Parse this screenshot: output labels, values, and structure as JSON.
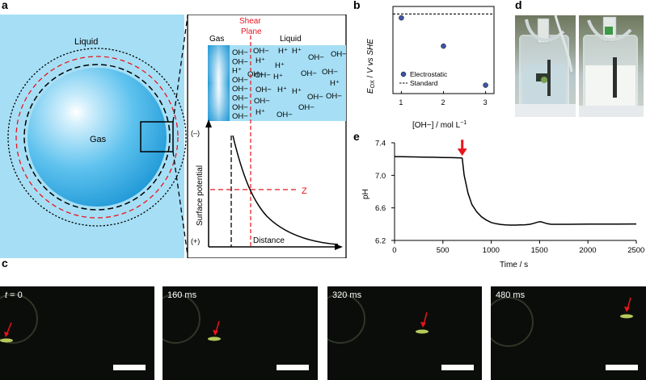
{
  "panel_labels": {
    "a": "a",
    "b": "b",
    "c": "c",
    "d": "d",
    "e": "e"
  },
  "panel_a": {
    "liquid_label": "Liquid",
    "gas_label": "Gas",
    "zoom": {
      "gas_label": "Gas",
      "shear_plane_line1": "Shear",
      "shear_plane_line2": "Plane",
      "liquid_label": "Liquid",
      "surface_ions": [
        "OH−",
        "OH−",
        "H⁺",
        "OH−",
        "OH−",
        "OH−",
        "OH−",
        "OH−"
      ],
      "solution_ions": [
        "OH−",
        "H⁺",
        "H⁺",
        "OH−",
        "OH−",
        "H⁺",
        "H⁺",
        "OH−",
        "OH−",
        "H⁺",
        "OH−",
        "OH−",
        "H⁺",
        "OH−",
        "H⁺",
        "H⁺",
        "OH−",
        "OH−",
        "OH−",
        "H⁺",
        "OH−",
        "OH−"
      ],
      "y_axis_label": "Surface potential",
      "y_minus": "(–)",
      "y_plus": "(+)",
      "x_axis_label": "Distance",
      "zeta_label": "Z"
    }
  },
  "panel_b": {
    "chart_data": {
      "type": "scatter",
      "x_ticks": [
        "1",
        "2",
        "3"
      ],
      "y_label": "E_OX / V vs SHE",
      "x_label": "[OH−] / mol L−1",
      "xlim": [
        0.8,
        3.2
      ],
      "ylim": [
        -0.8,
        2.1
      ],
      "series": [
        {
          "name": "Electrostatic",
          "x": [
            1,
            2,
            3
          ],
          "y": [
            1.72,
            0.78,
            -0.52
          ],
          "style": "dot",
          "color": "#3f56a6"
        },
        {
          "name": "Standard",
          "y": 1.85,
          "style": "dashed-line",
          "color": "#000000"
        }
      ],
      "legend_position": "middle-right"
    },
    "y_label_parts": {
      "e": "E",
      "sub": "OX",
      "rest": " / ",
      "v": "V",
      "vs": " vs SHE"
    },
    "x_label_parts": {
      "main": "[OH−] / mol L",
      "sup": "−1"
    }
  },
  "panel_e": {
    "chart_data": {
      "type": "line",
      "x_label": "Time / s",
      "y_label": "pH",
      "xlim": [
        0,
        2500
      ],
      "ylim": [
        6.2,
        7.4
      ],
      "x_ticks": [
        "0",
        "500",
        "1000",
        "1500",
        "2000",
        "2500"
      ],
      "y_ticks": [
        "6.2",
        "6.6",
        "7.0",
        "7.4"
      ],
      "series": [
        {
          "name": "pH",
          "x": [
            0,
            100,
            200,
            300,
            400,
            500,
            600,
            690,
            700,
            720,
            760,
            800,
            850,
            900,
            950,
            1000,
            1050,
            1100,
            1150,
            1200,
            1250,
            1300,
            1350,
            1400,
            1440,
            1480,
            1510,
            1540,
            1580,
            1620,
            1700,
            1800,
            2000,
            2200,
            2500
          ],
          "y": [
            7.23,
            7.228,
            7.226,
            7.224,
            7.222,
            7.22,
            7.218,
            7.215,
            7.21,
            7.0,
            6.78,
            6.64,
            6.55,
            6.49,
            6.45,
            6.42,
            6.405,
            6.395,
            6.39,
            6.388,
            6.388,
            6.39,
            6.392,
            6.398,
            6.41,
            6.425,
            6.43,
            6.42,
            6.405,
            6.398,
            6.398,
            6.398,
            6.4,
            6.4,
            6.402
          ]
        }
      ],
      "annotation": {
        "type": "arrow",
        "x": 700,
        "color": "#e8141d"
      }
    }
  },
  "panel_c": {
    "frames": [
      {
        "time": "t = 0",
        "t_italic": "t",
        "t_rest": " = 0"
      },
      {
        "time": "160 ms"
      },
      {
        "time": "320 ms"
      },
      {
        "time": "480 ms"
      }
    ]
  },
  "colors": {
    "liquid": "#a6dff5",
    "red": "#e8141d",
    "accent_blue": "#3f56a6",
    "micro_bg": "#0b0d0a",
    "bubble_glow": "#b7c95a"
  }
}
